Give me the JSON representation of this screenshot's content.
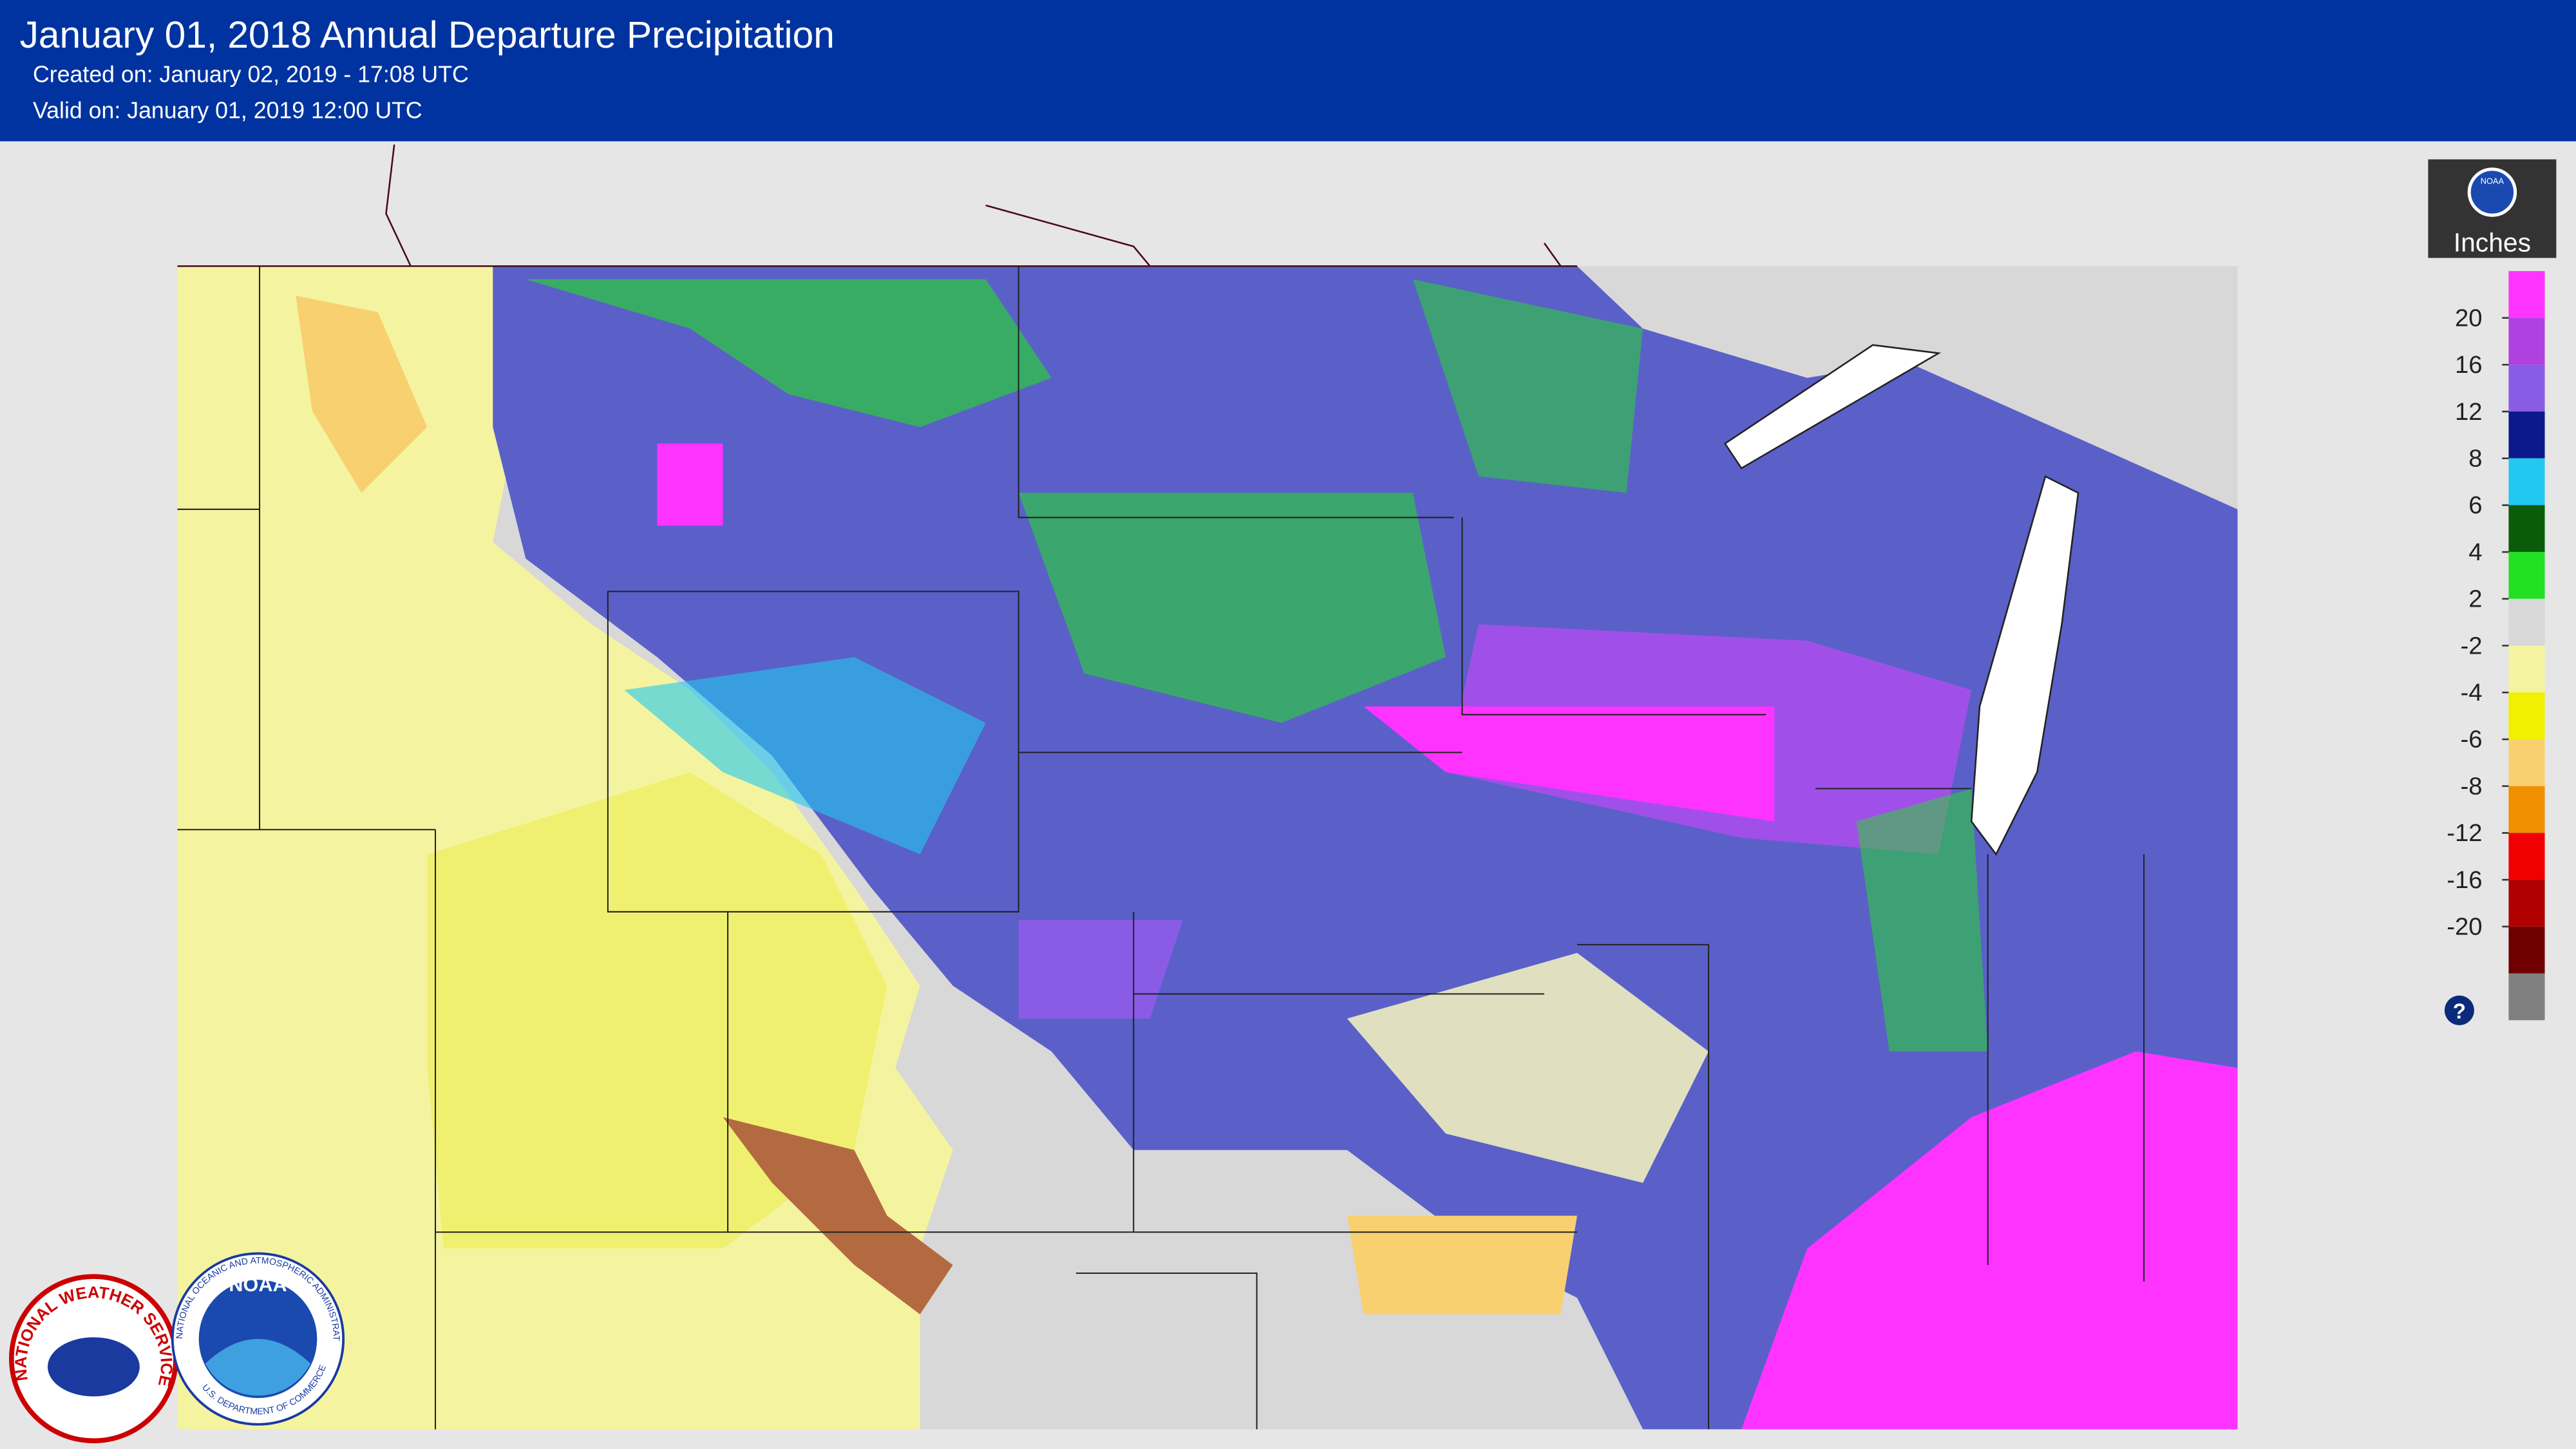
{
  "header": {
    "title": "January 01, 2018 Annual Departure Precipitation",
    "created": "Created on: January 02, 2019 - 17:08 UTC",
    "valid": "Valid on: January 01, 2019 12:00 UTC"
  },
  "legend": {
    "title": "Inches",
    "logo": "NOAA",
    "labels": [
      20,
      16,
      12,
      8,
      6,
      4,
      2,
      -2,
      -4,
      -6,
      -8,
      -12,
      -16,
      -20
    ],
    "colors": [
      "#ff33ff",
      "#b040e0",
      "#8a5ce6",
      "#0a1a8c",
      "#22c8f0",
      "#0a5c0a",
      "#22e022",
      "#d8d8d8",
      "#f4f4a0",
      "#f0f000",
      "#f8d070",
      "#f09000",
      "#f00000",
      "#b00000",
      "#700000",
      "#808080"
    ],
    "help": "?"
  },
  "logos": {
    "nws": "NATIONAL WEATHER SERVICE",
    "noaa": "NOAA",
    "noaa_ring_top": "NATIONAL OCEANIC AND ATMOSPHERIC ADMINISTRATION",
    "noaa_ring_bottom": "U.S. DEPARTMENT OF COMMERCE"
  }
}
